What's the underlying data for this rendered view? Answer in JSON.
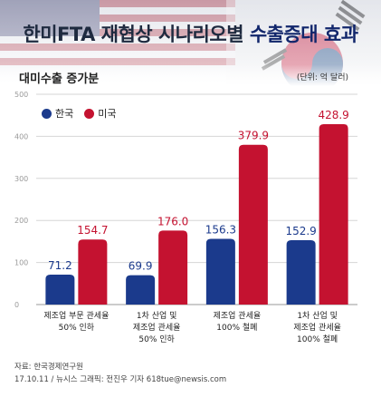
{
  "header": {
    "title_prefix": "한미FTA 재협상 시나리오별 ",
    "title_highlight": "수출증대 효과",
    "subtitle": "대미수출 증가분",
    "unit": "(단위: 억 달러)"
  },
  "legend": [
    {
      "label": "한국",
      "color": "#1b3a8c"
    },
    {
      "label": "미국",
      "color": "#c41230"
    }
  ],
  "colors": {
    "korea": "#1b3a8c",
    "usa": "#c41230",
    "grid": "#d6d6d6",
    "axis": "#9a9a9a"
  },
  "chart_data": {
    "type": "bar",
    "categories": [
      [
        "제조업 부문 관세율",
        "50% 인하"
      ],
      [
        "1차 산업 및",
        "제조업 관세율",
        "50% 인하"
      ],
      [
        "제조업 관세율",
        "100% 철폐"
      ],
      [
        "1차 산업 및",
        "제조업 관세율",
        "100% 철폐"
      ]
    ],
    "series": [
      {
        "name": "한국",
        "values": [
          71.2,
          69.9,
          156.3,
          152.9
        ]
      },
      {
        "name": "미국",
        "values": [
          154.7,
          176.0,
          379.9,
          428.9
        ]
      }
    ],
    "value_labels": [
      [
        "71.2",
        "69.9",
        "156.3",
        "152.9"
      ],
      [
        "154.7",
        "176.0",
        "379.9",
        "428.9"
      ]
    ],
    "yticks": [
      "0",
      "100",
      "200",
      "300",
      "400",
      "500"
    ],
    "ylim": [
      0,
      500
    ],
    "grid": true,
    "legend_position": "top-left"
  },
  "footer": {
    "source": "자료: 한국경제연구원",
    "credit": "17.10.11 / 뉴시스 그래픽: 전진우 기자 618tue@newsis.com"
  }
}
